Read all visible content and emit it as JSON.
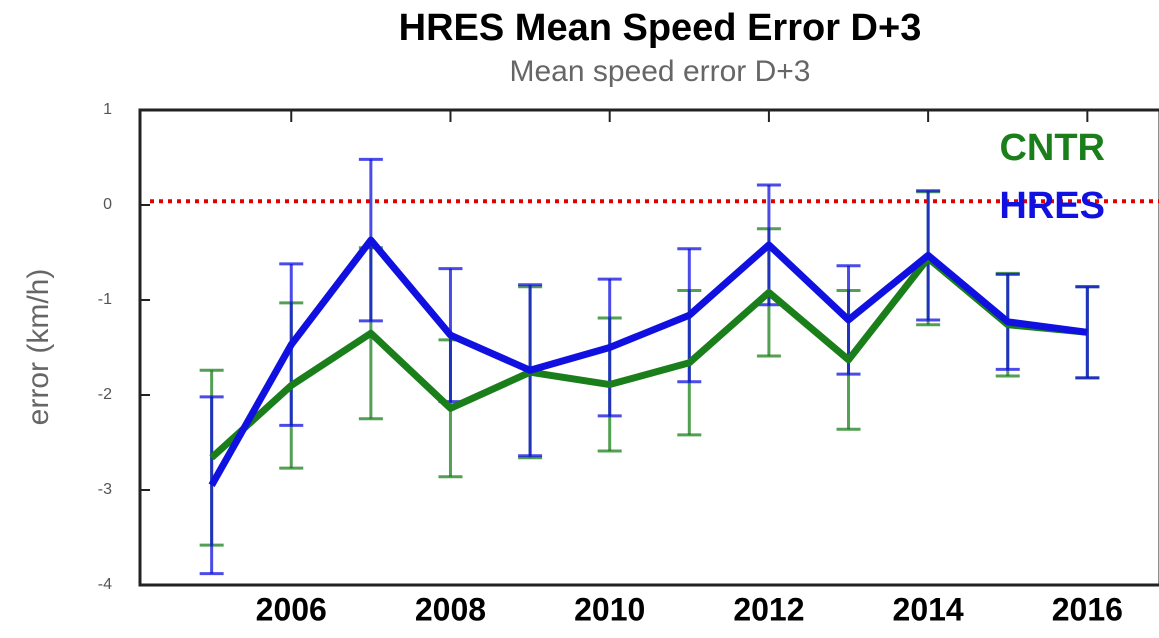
{
  "chart_data": {
    "type": "line",
    "title": "HRES Mean Speed Error D+3",
    "subtitle": "Mean speed error D+3",
    "y_label": "error (km/h)",
    "x": [
      2005,
      2006,
      2007,
      2008,
      2009,
      2010,
      2011,
      2012,
      2013,
      2014,
      2015,
      2016
    ],
    "series": [
      {
        "name": "CNTR",
        "color": "#1a7f1a",
        "values": [
          -2.66,
          -1.9,
          -1.35,
          -2.14,
          -1.76,
          -1.89,
          -1.66,
          -0.92,
          -1.63,
          -0.56,
          -1.26,
          -1.34
        ],
        "errors": [
          0.92,
          0.87,
          0.9,
          0.72,
          0.9,
          0.7,
          0.76,
          0.67,
          0.73,
          0.7,
          0.54,
          0.48
        ]
      },
      {
        "name": "HRES",
        "color": "#1010e0",
        "values": [
          -2.95,
          -1.47,
          -0.37,
          -1.37,
          -1.74,
          -1.5,
          -1.16,
          -0.42,
          -1.21,
          -0.53,
          -1.23,
          -1.34
        ],
        "errors": [
          0.93,
          0.85,
          0.85,
          0.7,
          0.9,
          0.72,
          0.7,
          0.63,
          0.57,
          0.68,
          0.5,
          0.48
        ]
      }
    ],
    "reference_line": {
      "value": 0.04,
      "color": "#e00000"
    },
    "xlim": [
      2004.1,
      2016.9
    ],
    "xticks": [
      2006,
      2008,
      2010,
      2012,
      2014,
      2016
    ],
    "ylim": [
      -4,
      1
    ],
    "yticks": [
      1,
      0,
      -1,
      -2,
      -3,
      -4
    ]
  }
}
